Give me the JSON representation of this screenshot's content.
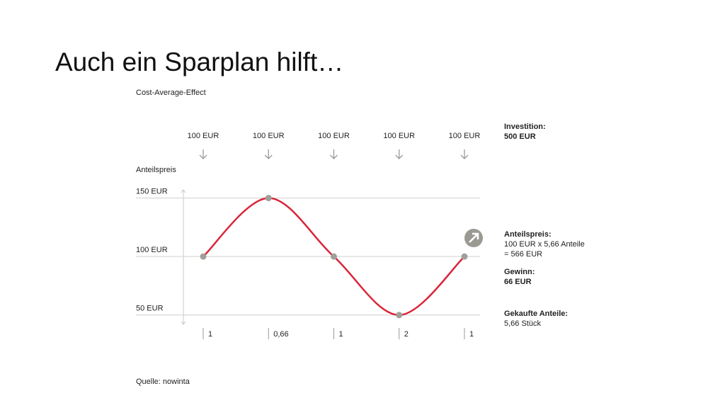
{
  "slide_title": "Auch ein Sparplan hilft…",
  "chart_data": {
    "type": "line",
    "title": "Cost-Average-Effect",
    "y_label": "Anteilspreis",
    "categories": [
      "100 EUR",
      "100 EUR",
      "100 EUR",
      "100 EUR",
      "100 EUR"
    ],
    "values": [
      100,
      150,
      100,
      50,
      100
    ],
    "color": "#d9263a",
    "share_labels": [
      "1",
      "0,66",
      "1",
      "2",
      "1"
    ],
    "ylim": [
      42,
      157
    ],
    "yticks": [
      {
        "value": 150,
        "label": "150 EUR"
      },
      {
        "value": 100,
        "label": "100 EUR"
      },
      {
        "value": 50,
        "label": "50 EUR"
      }
    ],
    "grid": true,
    "notes": [
      {
        "title": "Investition:",
        "lines": [
          "500 EUR"
        ]
      },
      {
        "title": "Anteilspreis:",
        "lines": [
          "100 EUR x 5,66 Anteile",
          "= 566 EUR"
        ]
      },
      {
        "title": "Gewinn:",
        "lines": [
          "66 EUR"
        ]
      },
      {
        "title": "Gekaufte Anteile:",
        "lines": [
          "5,66 Stück"
        ]
      }
    ],
    "source": "Quelle: nowinta"
  }
}
